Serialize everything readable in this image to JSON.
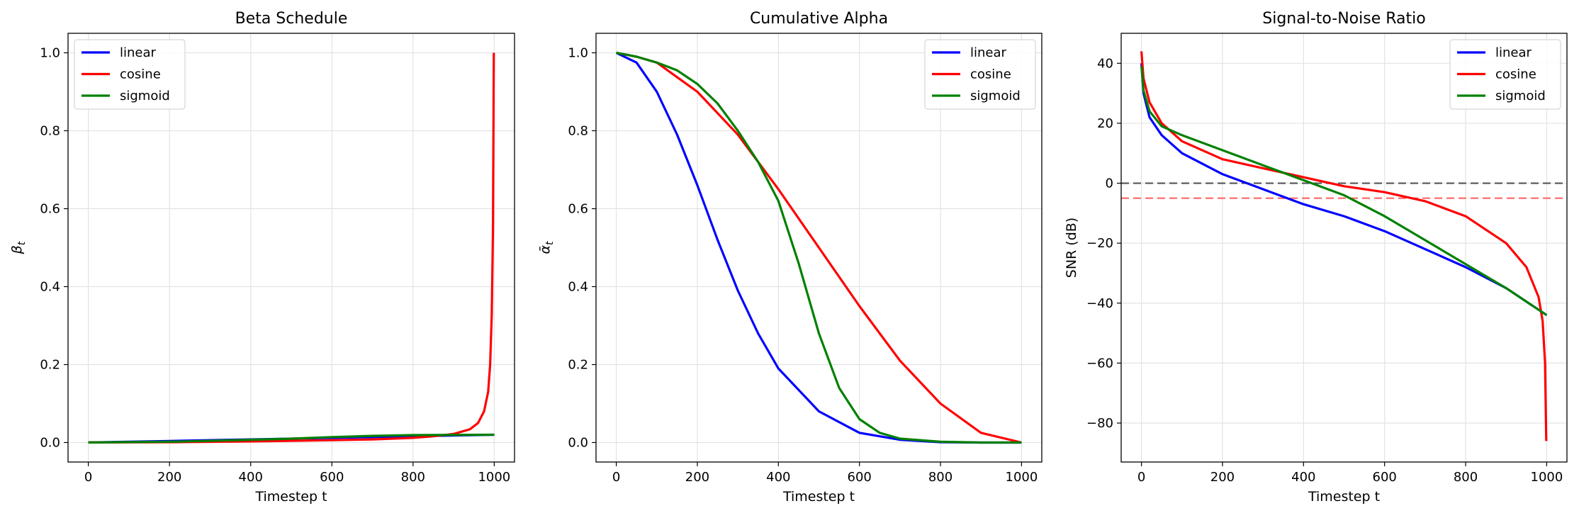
{
  "chart_data": [
    {
      "type": "line",
      "title": "Beta Schedule",
      "xlabel": "Timestep t",
      "ylabel": "β_t",
      "xlim": [
        -50,
        1050
      ],
      "ylim": [
        -0.05,
        1.05
      ],
      "xticks": [
        0,
        200,
        400,
        600,
        800,
        1000
      ],
      "xtick_labels": [
        "0",
        "200",
        "400",
        "600",
        "800",
        "1000"
      ],
      "yticks": [
        0.0,
        0.2,
        0.4,
        0.6,
        0.8,
        1.0
      ],
      "ytick_labels": [
        "0.0",
        "0.2",
        "0.4",
        "0.6",
        "0.8",
        "1.0"
      ],
      "grid": true,
      "legend_position": "upper-left",
      "series": [
        {
          "name": "linear",
          "color": "#0000ff",
          "x": [
            0,
            200,
            400,
            600,
            800,
            1000
          ],
          "y": [
            0.0001,
            0.004,
            0.008,
            0.012,
            0.016,
            0.02
          ]
        },
        {
          "name": "cosine",
          "color": "#ff0000",
          "x": [
            0,
            200,
            400,
            600,
            700,
            800,
            850,
            900,
            940,
            960,
            975,
            985,
            990,
            994,
            997,
            999
          ],
          "y": [
            0.0001,
            0.001,
            0.003,
            0.006,
            0.008,
            0.012,
            0.016,
            0.022,
            0.034,
            0.05,
            0.08,
            0.13,
            0.2,
            0.33,
            0.55,
            1.0
          ]
        },
        {
          "name": "sigmoid",
          "color": "#008000",
          "x": [
            0,
            200,
            400,
            500,
            600,
            700,
            800,
            1000
          ],
          "y": [
            0.0001,
            0.002,
            0.007,
            0.01,
            0.014,
            0.017,
            0.019,
            0.02
          ]
        }
      ]
    },
    {
      "type": "line",
      "title": "Cumulative Alpha",
      "xlabel": "Timestep t",
      "ylabel": "ᾱ_t",
      "xlim": [
        -50,
        1050
      ],
      "ylim": [
        -0.05,
        1.05
      ],
      "xticks": [
        0,
        200,
        400,
        600,
        800,
        1000
      ],
      "xtick_labels": [
        "0",
        "200",
        "400",
        "600",
        "800",
        "1000"
      ],
      "yticks": [
        0.0,
        0.2,
        0.4,
        0.6,
        0.8,
        1.0
      ],
      "ytick_labels": [
        "0.0",
        "0.2",
        "0.4",
        "0.6",
        "0.8",
        "1.0"
      ],
      "grid": true,
      "legend_position": "upper-right",
      "series": [
        {
          "name": "linear",
          "color": "#0000ff",
          "x": [
            0,
            50,
            100,
            150,
            200,
            250,
            300,
            350,
            400,
            500,
            600,
            700,
            800,
            900,
            1000
          ],
          "y": [
            1.0,
            0.975,
            0.9,
            0.79,
            0.66,
            0.52,
            0.39,
            0.28,
            0.19,
            0.08,
            0.025,
            0.007,
            0.001,
            0.0,
            0.0
          ]
        },
        {
          "name": "cosine",
          "color": "#ff0000",
          "x": [
            0,
            50,
            100,
            200,
            300,
            400,
            500,
            600,
            700,
            800,
            900,
            1000
          ],
          "y": [
            1.0,
            0.99,
            0.975,
            0.9,
            0.79,
            0.65,
            0.5,
            0.35,
            0.21,
            0.1,
            0.025,
            0.0
          ]
        },
        {
          "name": "sigmoid",
          "color": "#008000",
          "x": [
            0,
            50,
            100,
            150,
            200,
            250,
            300,
            350,
            400,
            450,
            500,
            550,
            600,
            650,
            700,
            800,
            900,
            1000
          ],
          "y": [
            1.0,
            0.99,
            0.975,
            0.955,
            0.92,
            0.87,
            0.8,
            0.72,
            0.62,
            0.46,
            0.28,
            0.14,
            0.06,
            0.025,
            0.01,
            0.002,
            0.0,
            0.0
          ]
        }
      ]
    },
    {
      "type": "line",
      "title": "Signal-to-Noise Ratio",
      "xlabel": "Timestep t",
      "ylabel": "SNR (dB)",
      "xlim": [
        -50,
        1050
      ],
      "ylim": [
        -93,
        50
      ],
      "xticks": [
        0,
        200,
        400,
        600,
        800,
        1000
      ],
      "xtick_labels": [
        "0",
        "200",
        "400",
        "600",
        "800",
        "1000"
      ],
      "yticks": [
        -80,
        -60,
        -40,
        -20,
        0,
        20,
        40
      ],
      "ytick_labels": [
        "−80",
        "−60",
        "−40",
        "−20",
        "0",
        "20",
        "40"
      ],
      "grid": true,
      "legend_position": "upper-right",
      "reference_lines": [
        {
          "y": 0,
          "color": "#555555",
          "style": "dashed"
        },
        {
          "y": -5,
          "color": "#ff6666",
          "style": "dashed"
        }
      ],
      "series": [
        {
          "name": "linear",
          "color": "#0000ff",
          "x": [
            0,
            5,
            20,
            50,
            100,
            200,
            260,
            300,
            400,
            500,
            600,
            700,
            800,
            900,
            1000
          ],
          "y": [
            40,
            30,
            22,
            16,
            10,
            3,
            0,
            -2,
            -7,
            -11,
            -16,
            -22,
            -28,
            -35,
            -44
          ]
        },
        {
          "name": "cosine",
          "color": "#ff0000",
          "x": [
            0,
            5,
            20,
            50,
            100,
            200,
            300,
            400,
            500,
            600,
            700,
            800,
            900,
            950,
            980,
            990,
            996,
            999
          ],
          "y": [
            44,
            35,
            27,
            20,
            14,
            8,
            5,
            2,
            -1,
            -3,
            -6,
            -11,
            -20,
            -28,
            -38,
            -46,
            -60,
            -86
          ]
        },
        {
          "name": "sigmoid",
          "color": "#008000",
          "x": [
            0,
            5,
            20,
            50,
            100,
            200,
            300,
            400,
            500,
            600,
            700,
            800,
            900,
            1000
          ],
          "y": [
            39,
            31,
            24,
            19,
            16,
            11,
            6,
            1,
            -4,
            -11,
            -19,
            -27,
            -35,
            -44
          ]
        }
      ]
    }
  ]
}
